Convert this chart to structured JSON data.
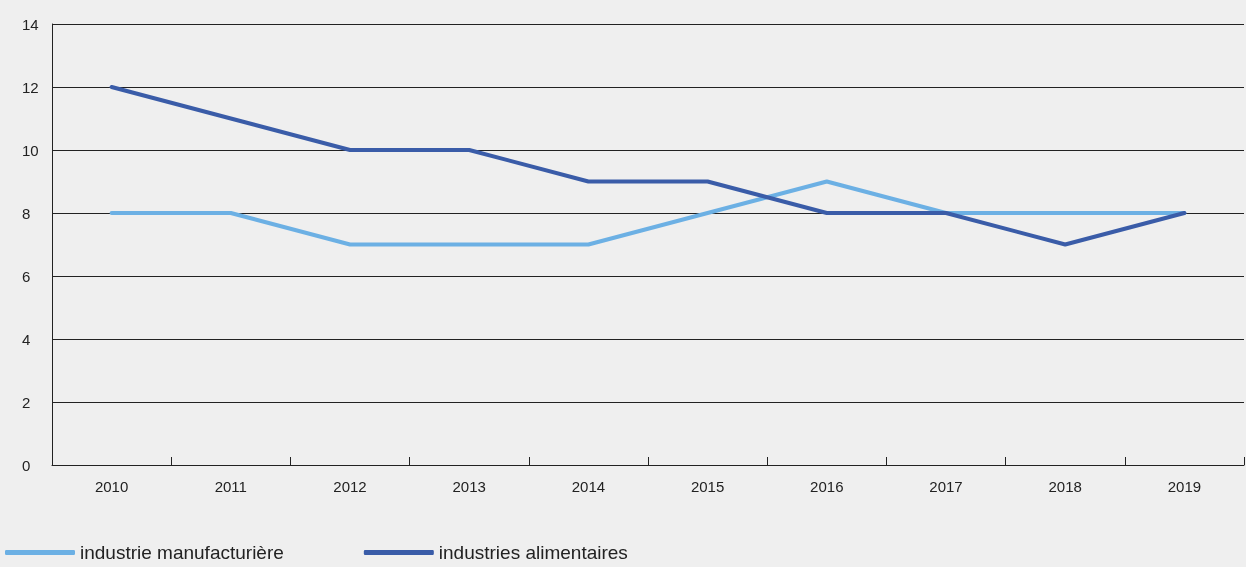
{
  "chart_data": {
    "type": "line",
    "categories": [
      "2010",
      "2011",
      "2012",
      "2013",
      "2014",
      "2015",
      "2016",
      "2017",
      "2018",
      "2019"
    ],
    "series": [
      {
        "name": "industrie manufacturière",
        "color": "#6cb0e4",
        "values": [
          8,
          8,
          7,
          7,
          7,
          8,
          9,
          8,
          8,
          8
        ]
      },
      {
        "name": "industries alimentaires",
        "color": "#3a5ca8",
        "values": [
          12,
          11,
          10,
          10,
          9,
          9,
          8,
          8,
          7,
          8
        ]
      }
    ],
    "ylim": [
      0,
      14
    ],
    "yticks": [
      0,
      2,
      4,
      6,
      8,
      10,
      12,
      14
    ],
    "grid": "y",
    "legend": "bottom left",
    "marker": "none",
    "line_style": "solid"
  }
}
